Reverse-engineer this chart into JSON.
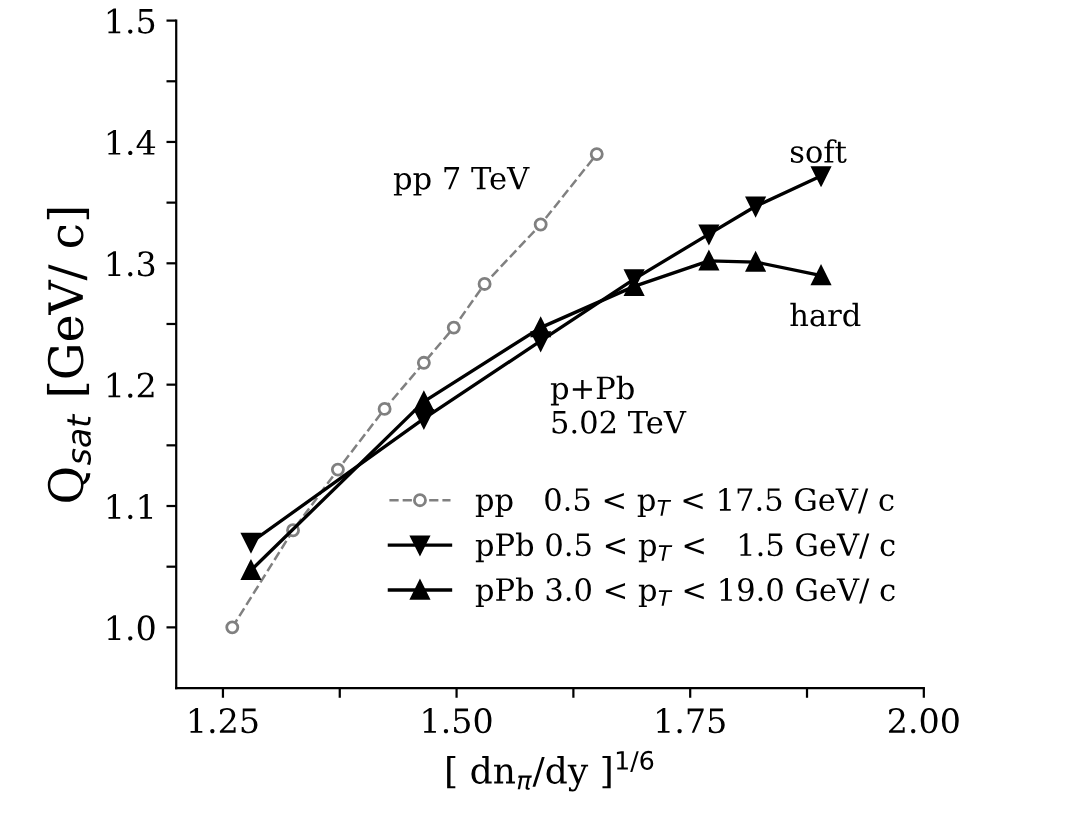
{
  "chart_data": {
    "type": "line",
    "xlabel": "[ dn$_{π}$/dy ]$^{1/6}$",
    "ylabel": "Q$_{sat}$ [GeV/ c]",
    "xlim": [
      1.2,
      2.0
    ],
    "ylim": [
      0.95,
      1.5
    ],
    "xticks": [
      {
        "value": 1.25,
        "label": "1.25"
      },
      {
        "value": 1.375,
        "label": null
      },
      {
        "value": 1.5,
        "label": "1.50"
      },
      {
        "value": 1.625,
        "label": null
      },
      {
        "value": 1.75,
        "label": "1.75"
      },
      {
        "value": 1.875,
        "label": null
      },
      {
        "value": 2.0,
        "label": "2.00"
      }
    ],
    "yticks": [
      {
        "value": 1.0,
        "label": "1.0"
      },
      {
        "value": 1.05,
        "label": null
      },
      1.1,
      {
        "value": 1.15,
        "label": null
      },
      1.2,
      {
        "value": 1.25,
        "label": null
      },
      1.3,
      {
        "value": 1.35,
        "label": null
      },
      1.4,
      {
        "value": 1.45,
        "label": null
      },
      1.5
    ],
    "grid": false,
    "legend": "bottom right",
    "series": [
      {
        "name": "pp   0.5 < p$_{T}$ < 17.5 GeV/ c",
        "color": "#808080",
        "marker": "circle",
        "line_style": "dashed",
        "x": [
          1.26,
          1.325,
          1.373,
          1.423,
          1.465,
          1.497,
          1.53,
          1.59,
          1.65
        ],
        "values": [
          1.0,
          1.08,
          1.13,
          1.18,
          1.218,
          1.247,
          1.283,
          1.332,
          1.39
        ]
      },
      {
        "name": "pPb 0.5 < p$_{T}$ <   1.5 GeV/ c",
        "color": "#000000",
        "marker": "triangle_down",
        "line_style": "solid",
        "x": [
          1.28,
          1.465,
          1.59,
          1.69,
          1.77,
          1.82,
          1.89
        ],
        "values": [
          1.07,
          1.172,
          1.236,
          1.287,
          1.324,
          1.347,
          1.372
        ]
      },
      {
        "name": "pPb 3.0 < p$_{T}$ < 19.0 GeV/ c",
        "color": "#000000",
        "marker": "triangle",
        "line_style": "solid",
        "x": [
          1.28,
          1.465,
          1.59,
          1.69,
          1.77,
          1.82,
          1.89
        ],
        "values": [
          1.047,
          1.186,
          1.247,
          1.281,
          1.302,
          1.301,
          1.29
        ]
      }
    ],
    "annotations": [
      "pp 7 TeV",
      "soft",
      "hard",
      "p+Pb\n5.02 TeV"
    ]
  }
}
